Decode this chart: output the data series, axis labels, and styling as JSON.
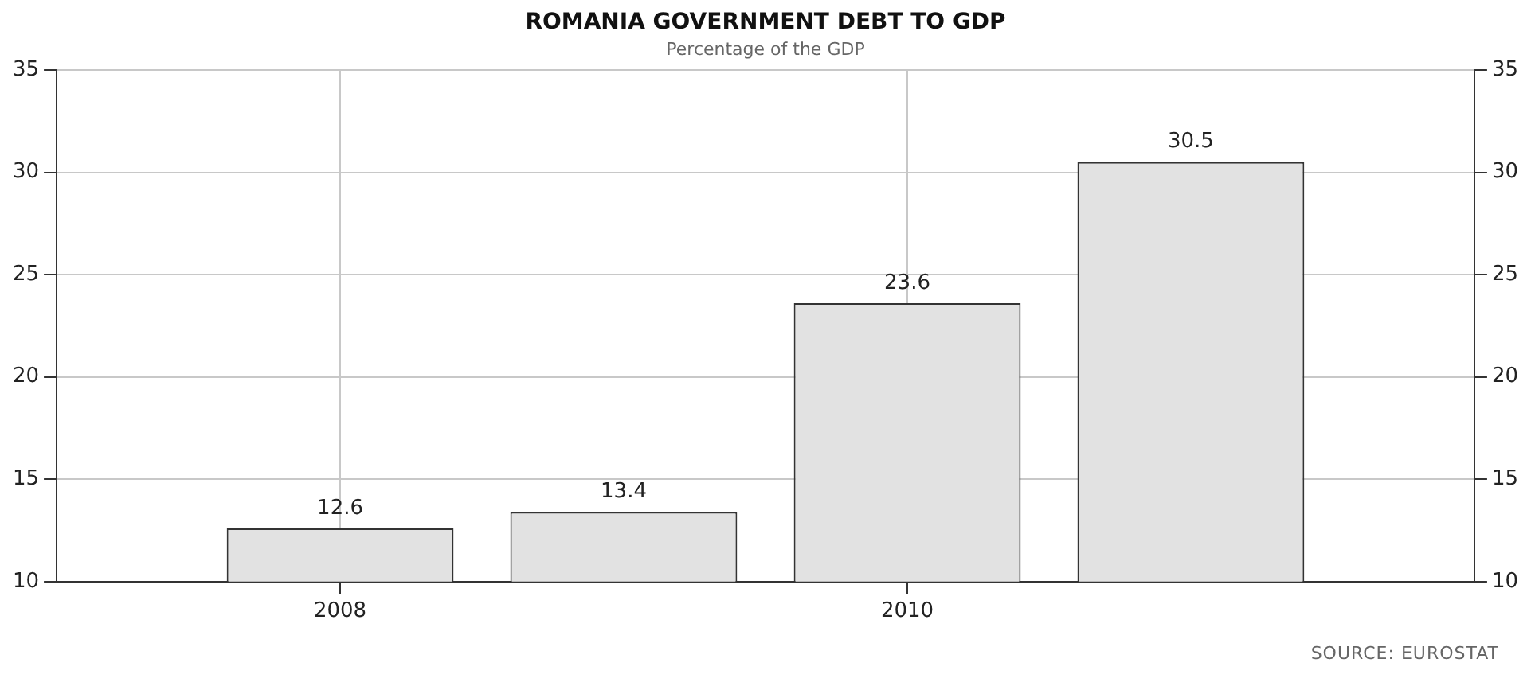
{
  "chart_data": {
    "type": "bar",
    "title": "ROMANIA GOVERNMENT DEBT TO GDP",
    "subtitle": "Percentage of the GDP",
    "x": [
      2008,
      2009,
      2010,
      2011
    ],
    "values": [
      12.6,
      13.4,
      23.6,
      30.5
    ],
    "color": "#e2e2e2",
    "xlim": [
      2007,
      2012
    ],
    "xticks": [
      2008,
      2010
    ],
    "ylim": [
      10,
      35
    ],
    "yticks": [
      10,
      15,
      20,
      25,
      30,
      35
    ],
    "y2lim": [
      10,
      35
    ],
    "y2ticks": [
      10,
      15,
      20,
      25,
      30,
      35
    ],
    "grid": true,
    "data_labels": true,
    "legend": false,
    "annotations": [
      "SOURCE: EUROSTAT"
    ]
  }
}
